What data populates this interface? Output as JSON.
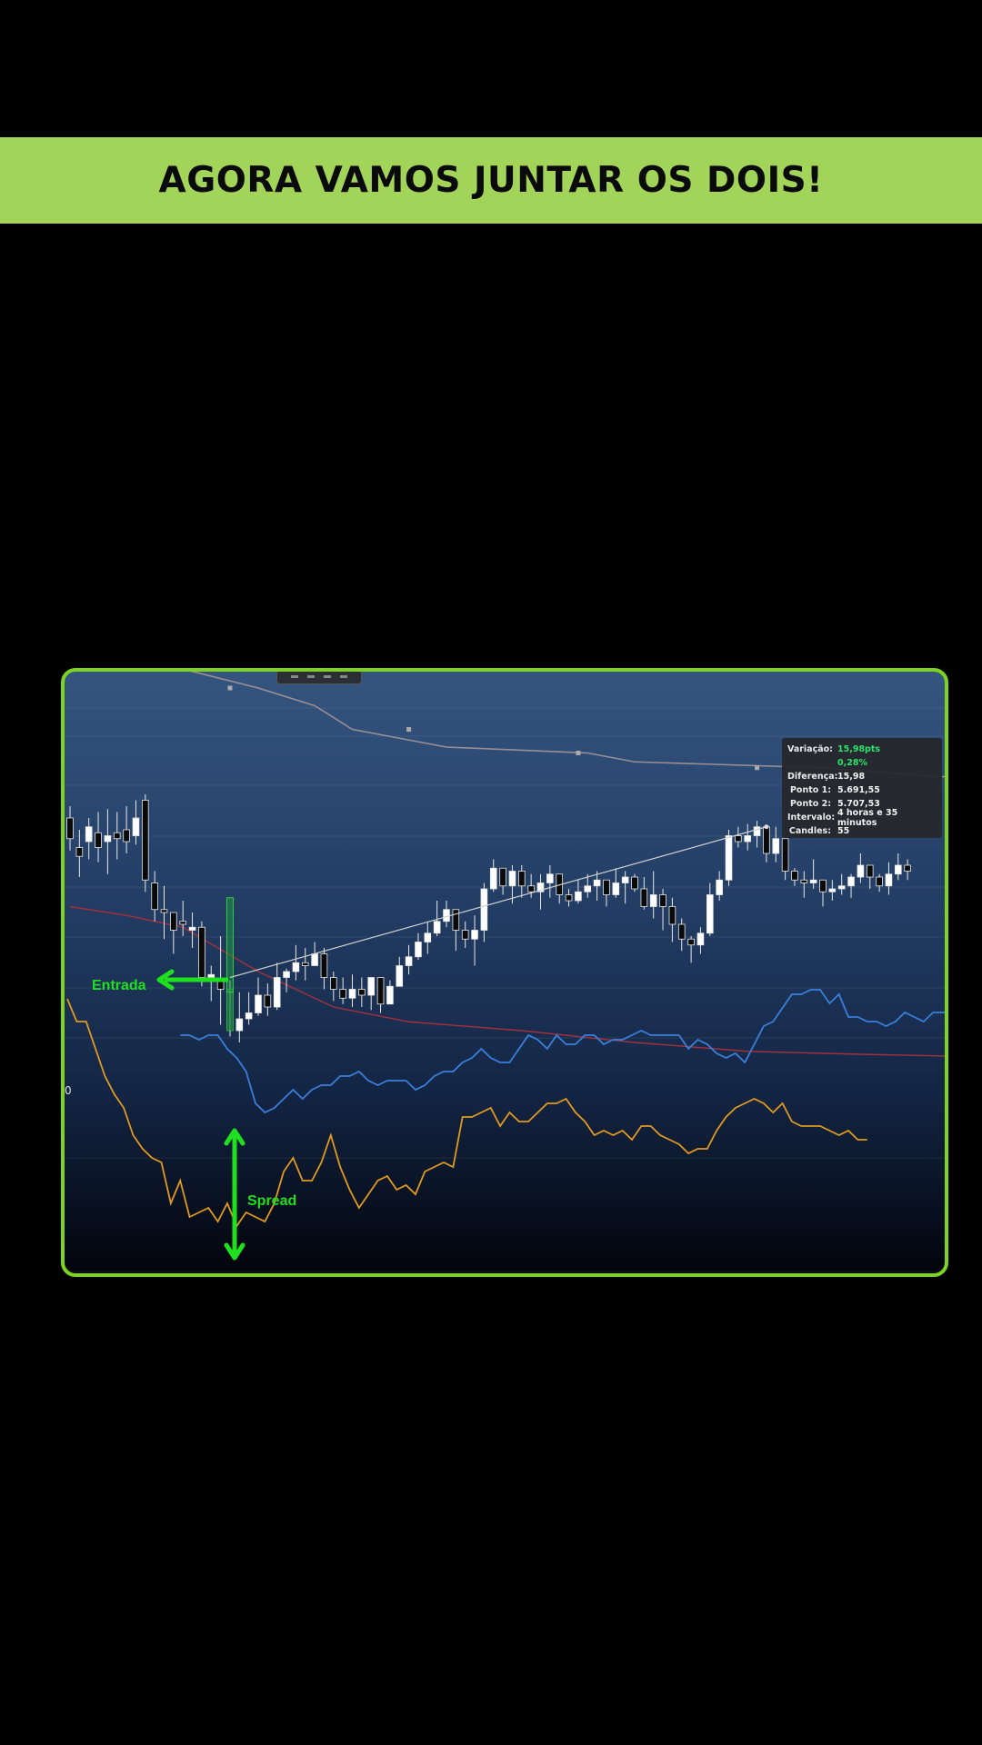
{
  "banner": {
    "title": "AGORA VAMOS JUNTAR OS DOIS!"
  },
  "annotations": {
    "entry_label": "Entrada",
    "spread_label": "Spread",
    "osc_tick": "0"
  },
  "info_panel": {
    "rows": [
      {
        "key": "Variação:",
        "value": "15,98pts",
        "accent": true
      },
      {
        "key": "",
        "value": "0,28%",
        "accent": true
      },
      {
        "key": "Diferença:",
        "value": "15,98",
        "accent": false
      },
      {
        "key": "Ponto 1:",
        "value": "5.691,55",
        "accent": false
      },
      {
        "key": "Ponto 2:",
        "value": "5.707,53",
        "accent": false
      },
      {
        "key": "Intervalo:",
        "value": "4 horas e 35 minutos",
        "accent": false
      },
      {
        "key": "Candles:",
        "value": "55",
        "accent": false
      }
    ]
  },
  "colors": {
    "banner_bg": "#a2d459",
    "frame_border": "#7ed321",
    "annotation": "#1fe01f",
    "upper_band": "#9a8f96",
    "lower_band": "#a5303c",
    "blue_line": "#3a7fd9",
    "orange_line": "#e09a1f"
  },
  "chart_data": {
    "type": "candlestick",
    "title": "",
    "measure": {
      "point1": 5691.55,
      "point2": 5707.53,
      "difference": 15.98,
      "percent": 0.28,
      "candles": 55
    },
    "candles": [
      [
        52,
        45,
        56,
        41
      ],
      [
        42,
        39,
        48,
        32
      ],
      [
        44,
        49,
        52,
        38
      ],
      [
        47,
        42,
        54,
        37
      ],
      [
        44,
        46,
        55,
        33
      ],
      [
        47,
        45,
        54,
        38
      ],
      [
        48,
        44,
        56,
        40
      ],
      [
        46,
        52,
        58,
        43
      ],
      [
        58,
        31,
        60,
        27
      ],
      [
        30,
        21,
        34,
        17
      ],
      [
        21,
        20,
        29,
        11
      ],
      [
        20,
        14,
        19,
        6
      ],
      [
        17,
        16,
        24,
        12
      ],
      [
        14,
        15,
        20,
        8
      ],
      [
        15,
        -2,
        17,
        -5
      ],
      [
        -2,
        -1,
        2,
        -10
      ],
      [
        -3,
        -6,
        12,
        -18
      ],
      [
        -6,
        -20,
        -3,
        -22
      ],
      [
        -20,
        -16,
        -7,
        -24
      ],
      [
        -16,
        -14,
        -7,
        -18
      ],
      [
        -14,
        -8,
        -2,
        -15
      ],
      [
        -8,
        -12,
        -4,
        -15
      ],
      [
        -12,
        -2,
        3,
        -13
      ],
      [
        -2,
        0,
        1,
        -7
      ],
      [
        0,
        3,
        9,
        -3
      ],
      [
        3,
        2,
        8,
        -3
      ],
      [
        2,
        6,
        10,
        2
      ],
      [
        6,
        -2,
        8,
        -6
      ],
      [
        -2,
        -6,
        0,
        -10
      ],
      [
        -6,
        -9,
        -2,
        -11
      ],
      [
        -9,
        -6,
        -1,
        -12
      ],
      [
        -6,
        -8,
        -2,
        -12
      ],
      [
        -8,
        -2,
        -3,
        -13
      ],
      [
        -2,
        -11,
        -4,
        -14
      ],
      [
        -11,
        -5,
        -3,
        -10
      ],
      [
        -5,
        2,
        5,
        -5
      ],
      [
        2,
        5,
        9,
        -1
      ],
      [
        5,
        10,
        13,
        4
      ],
      [
        10,
        13,
        17,
        6
      ],
      [
        13,
        17,
        24,
        12
      ],
      [
        17,
        21,
        24,
        15
      ],
      [
        21,
        14,
        20,
        7
      ],
      [
        14,
        11,
        17,
        8
      ],
      [
        11,
        14,
        19,
        2
      ],
      [
        14,
        28,
        30,
        10
      ],
      [
        28,
        35,
        38,
        27
      ],
      [
        35,
        29,
        34,
        26
      ],
      [
        29,
        34,
        36,
        23
      ],
      [
        34,
        29,
        36,
        25
      ],
      [
        29,
        27,
        33,
        25
      ],
      [
        27,
        30,
        33,
        21
      ],
      [
        30,
        33,
        36,
        25
      ],
      [
        33,
        26,
        33,
        23
      ],
      [
        26,
        24,
        28,
        22
      ],
      [
        24,
        27,
        31,
        23
      ],
      [
        27,
        29,
        33,
        25
      ],
      [
        29,
        31,
        34,
        24
      ],
      [
        31,
        26,
        31,
        22
      ],
      [
        26,
        30,
        35,
        25
      ],
      [
        30,
        32,
        34,
        23
      ],
      [
        32,
        28,
        33,
        27
      ],
      [
        28,
        22,
        32,
        21
      ],
      [
        22,
        26,
        34,
        18
      ],
      [
        26,
        22,
        28,
        14
      ],
      [
        22,
        16,
        25,
        10
      ],
      [
        16,
        11,
        18,
        7
      ],
      [
        11,
        9,
        12,
        3
      ],
      [
        9,
        13,
        15,
        6
      ],
      [
        13,
        26,
        30,
        12
      ],
      [
        26,
        31,
        34,
        24
      ],
      [
        31,
        46,
        48,
        29
      ],
      [
        46,
        44,
        49,
        42
      ],
      [
        44,
        46,
        50,
        41
      ],
      [
        46,
        49,
        51,
        42
      ],
      [
        49,
        40,
        48,
        37
      ],
      [
        40,
        45,
        49,
        37
      ],
      [
        45,
        34,
        40,
        31
      ],
      [
        34,
        31,
        35,
        29
      ],
      [
        31,
        30,
        34,
        25
      ],
      [
        30,
        31,
        38,
        28
      ],
      [
        31,
        27,
        30,
        22
      ],
      [
        27,
        28,
        31,
        24
      ],
      [
        28,
        29,
        33,
        26
      ],
      [
        29,
        32,
        33,
        25
      ],
      [
        32,
        36,
        40,
        30
      ],
      [
        36,
        32,
        36,
        28
      ],
      [
        32,
        29,
        33,
        27
      ],
      [
        29,
        33,
        37,
        26
      ],
      [
        33,
        36,
        40,
        31
      ],
      [
        36,
        34,
        38,
        31
      ]
    ],
    "upper_band": [
      [
        0,
        110
      ],
      [
        10,
        104
      ],
      [
        20,
        96
      ],
      [
        26,
        90
      ],
      [
        30,
        82
      ],
      [
        40,
        76
      ],
      [
        55,
        74
      ],
      [
        60,
        71
      ],
      [
        80,
        69
      ],
      [
        92,
        66
      ],
      [
        99,
        66
      ]
    ],
    "lower_band": [
      [
        0,
        22
      ],
      [
        6,
        19
      ],
      [
        12,
        15
      ],
      [
        20,
        0
      ],
      [
        28,
        -12
      ],
      [
        36,
        -17
      ],
      [
        48,
        -20
      ],
      [
        60,
        -24
      ],
      [
        72,
        -27
      ],
      [
        84,
        -28
      ],
      [
        99,
        -29
      ]
    ],
    "trend_line": [
      [
        17,
        -2
      ],
      [
        74,
        49
      ]
    ],
    "blue_line": [
      12,
      12,
      11,
      12,
      12,
      9,
      7,
      4,
      -3,
      -5,
      -4,
      -2,
      0,
      -2,
      0,
      1,
      1,
      3,
      3,
      4,
      2,
      1,
      2,
      2,
      2,
      0,
      1,
      3,
      4,
      4,
      6,
      7,
      9,
      7,
      6,
      6,
      9,
      12,
      11,
      9,
      12,
      10,
      10,
      12,
      12,
      10,
      11,
      11,
      12,
      13,
      12,
      12,
      12,
      12,
      9,
      11,
      10,
      8,
      7,
      8,
      6,
      10,
      14,
      15,
      18,
      21,
      21,
      22,
      22,
      19,
      21,
      16,
      16,
      15,
      15,
      14,
      15,
      17,
      16,
      15,
      17,
      17,
      17,
      17,
      16
    ],
    "orange_line": [
      20,
      15,
      15,
      9,
      3,
      -1,
      -4,
      -10,
      -13,
      -15,
      -16,
      -25,
      -20,
      -28,
      -27,
      -26,
      -29,
      -25,
      -30,
      -27,
      -28,
      -29,
      -25,
      -18,
      -15,
      -20,
      -20,
      -16,
      -10,
      -17,
      -22,
      -26,
      -23,
      -20,
      -19,
      -22,
      -21,
      -23,
      -18,
      -17,
      -16,
      -17,
      -6,
      -6,
      -5,
      -4,
      -8,
      -5,
      -7,
      -7,
      -5,
      -3,
      -3,
      -2,
      -5,
      -7,
      -10,
      -9,
      -10,
      -9,
      -11,
      -8,
      -8,
      -10,
      -11,
      -12,
      -14,
      -13,
      -13,
      -9,
      -6,
      -4,
      -3,
      -2,
      -3,
      -5,
      -3,
      -7,
      -8,
      -8,
      -8,
      -9,
      -10,
      -9,
      -11,
      -11
    ]
  }
}
